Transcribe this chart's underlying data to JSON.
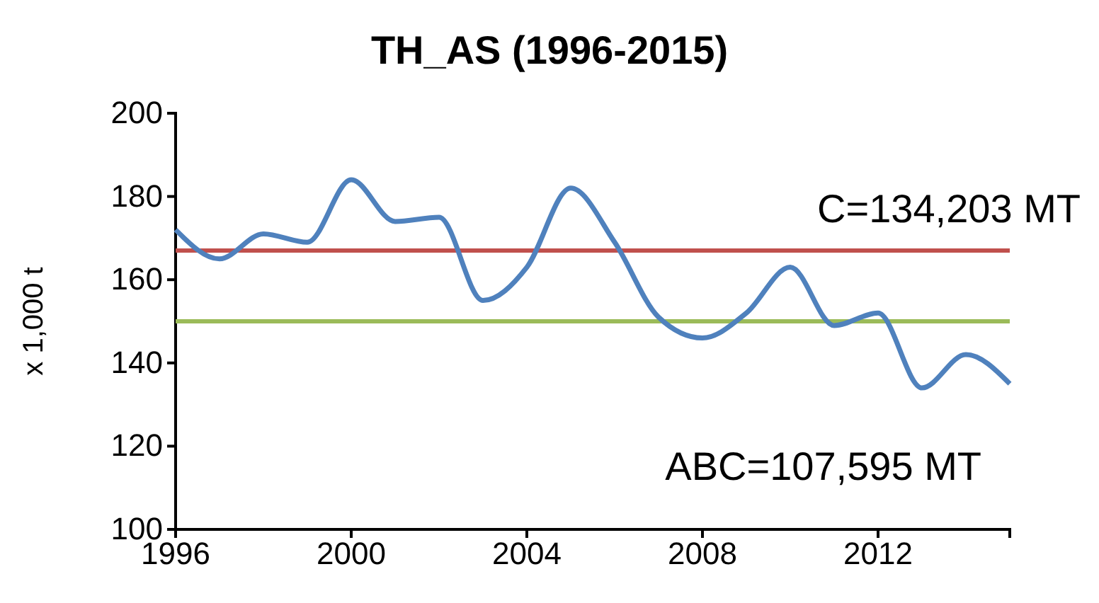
{
  "chart_data": {
    "type": "line",
    "title": "TH_AS (1996-2015)",
    "ylabel": "x 1,000 t",
    "x": [
      1996,
      1997,
      1998,
      1999,
      2000,
      2001,
      2002,
      2003,
      2004,
      2005,
      2006,
      2007,
      2008,
      2009,
      2010,
      2011,
      2012,
      2013,
      2014,
      2015
    ],
    "series": [
      {
        "color": "#4f81bd",
        "values": [
          172,
          165,
          171,
          169,
          184,
          174,
          175,
          155,
          163,
          182,
          169,
          151,
          146,
          152,
          163,
          149,
          152,
          134,
          142,
          135
        ]
      }
    ],
    "xlim": [
      1996,
      2015
    ],
    "xticks": [
      1996,
      2000,
      2004,
      2008,
      2012
    ],
    "ylim": [
      100,
      200
    ],
    "yticks": [
      100,
      120,
      140,
      160,
      180,
      200
    ],
    "ref_lines": [
      {
        "axis": "y",
        "value": 167,
        "color": "#c0504d"
      },
      {
        "axis": "y",
        "value": 150,
        "color": "#9bbb59"
      }
    ],
    "annotations": [
      "C=134,203 MT",
      "ABC=107,595 MT"
    ],
    "grid": false,
    "marker": "none",
    "line_style": "solid"
  }
}
